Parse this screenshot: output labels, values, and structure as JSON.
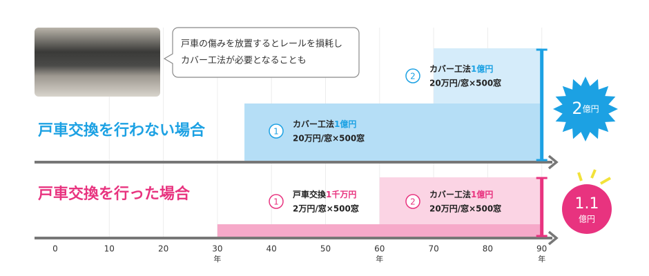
{
  "callout": {
    "lines": [
      "戸車の傷みを放置するとレールを損耗し",
      "カバー工法が必要となることも"
    ]
  },
  "timeline": {
    "ticks": [
      0,
      10,
      20,
      30,
      40,
      50,
      60,
      70,
      80,
      90
    ],
    "unit": "年",
    "unit_ticks": [
      30,
      60,
      90
    ]
  },
  "rows": [
    {
      "label": "戸車交換を行わない場合",
      "color": "#1ca1e3",
      "segments": [
        {
          "start": 35,
          "end": 90,
          "color": "#b5def6",
          "number": "1",
          "name": "カバー工法",
          "cost": "1億円",
          "detail": "20万円/窓×500窓"
        },
        {
          "start": 70,
          "end": 90,
          "color": "#d5ecfa",
          "number": "2",
          "name": "カバー工法",
          "cost": "1億円",
          "detail": "20万円/窓×500窓"
        }
      ],
      "total": {
        "value": "2",
        "unit": "億円"
      }
    },
    {
      "label": "戸車交換を行った場合",
      "color": "#e8337f",
      "segments": [
        {
          "start": 30,
          "end": 90,
          "color": "#f6a9c9",
          "number": "1",
          "name": "戸車交換",
          "cost": "1千万円",
          "detail": "2万円/窓×500窓"
        },
        {
          "start": 60,
          "end": 90,
          "color": "#fbd4e4",
          "number": "2",
          "name": "カバー工法",
          "cost": "1億円",
          "detail": "20万円/窓×500窓"
        }
      ],
      "total": {
        "value": "1.1",
        "unit": "億円"
      }
    }
  ]
}
